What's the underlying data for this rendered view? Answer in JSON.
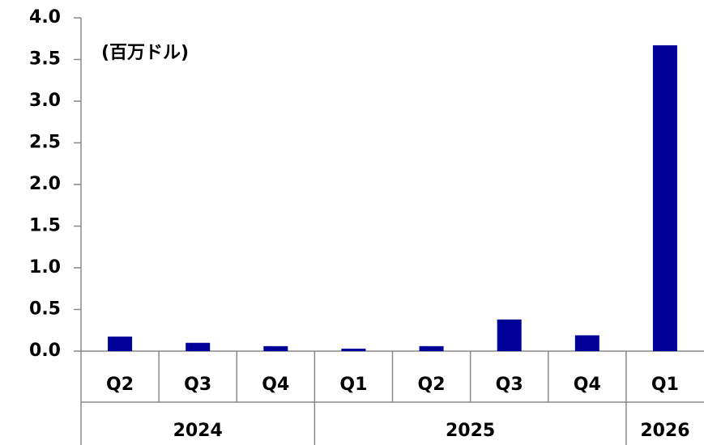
{
  "chart_data": {
    "type": "bar",
    "annotation": "(百万ドル)",
    "color": "#000099",
    "groups": [
      {
        "label": "2024",
        "categories": [
          "Q2",
          "Q3",
          "Q4"
        ]
      },
      {
        "label": "2025",
        "categories": [
          "Q1",
          "Q2",
          "Q3",
          "Q4"
        ]
      },
      {
        "label": "2026",
        "categories": [
          "Q1"
        ]
      }
    ],
    "values": [
      0.175,
      0.1,
      0.06,
      0.03,
      0.06,
      0.38,
      0.19,
      3.67
    ],
    "ylim": [
      0,
      4
    ],
    "yticks": [
      {
        "value": 0,
        "label": "0.0"
      },
      {
        "value": 0.5,
        "label": "0.5"
      },
      {
        "value": 1,
        "label": "1.0"
      },
      {
        "value": 1.5,
        "label": "1.5"
      },
      {
        "value": 2,
        "label": "2.0"
      },
      {
        "value": 2.5,
        "label": "2.5"
      },
      {
        "value": 3,
        "label": "3.0"
      },
      {
        "value": 3.5,
        "label": "3.5"
      },
      {
        "value": 4,
        "label": "4.0"
      }
    ]
  }
}
